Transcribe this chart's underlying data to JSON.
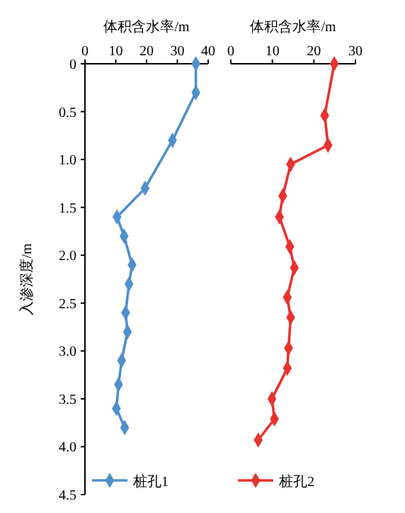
{
  "chart_data": [
    {
      "type": "line",
      "xlabel": "体积含水率/m",
      "ylabel": "入渗深度/m",
      "xlim": [
        0,
        40
      ],
      "xticks": [
        0,
        10,
        20,
        30,
        40
      ],
      "ylim": [
        4.5,
        0
      ],
      "yticks": [
        0,
        {
          "value": 0.5,
          "label": "0.5"
        },
        {
          "value": 1,
          "label": "1.0"
        },
        {
          "value": 1.5,
          "label": "1.5"
        },
        {
          "value": 2,
          "label": "2.0"
        },
        {
          "value": 2.5,
          "label": "2.5"
        },
        {
          "value": 3,
          "label": "3.0"
        },
        {
          "value": 3.5,
          "label": "3.5"
        },
        {
          "value": 4,
          "label": "4.0"
        },
        {
          "value": 4.5,
          "label": "4.5"
        }
      ],
      "marker": "diamond",
      "legend": "bottom",
      "grid": false,
      "series": [
        {
          "name": "桩孔1",
          "color": "#4f8fcb",
          "x": [
            36,
            36,
            28.4,
            19.5,
            10.4,
            12.7,
            15.3,
            14.3,
            13.2,
            13.8,
            11.9,
            10.9,
            10.2,
            12.9
          ],
          "values": [
            0,
            0.3,
            0.8,
            1.3,
            1.6,
            1.8,
            2.1,
            2.3,
            2.6,
            2.8,
            3.1,
            3.35,
            3.6,
            3.8
          ]
        }
      ]
    },
    {
      "type": "line",
      "xlabel": "体积含水率/m",
      "xlim": [
        0,
        30
      ],
      "xticks": [
        0,
        10,
        20,
        30
      ],
      "ylim": [
        4.5,
        0
      ],
      "tick_labels": "x",
      "marker": "diamond",
      "legend": "bottom",
      "grid": false,
      "series": [
        {
          "name": "桩孔2",
          "color": "#e8322e",
          "x": [
            24.9,
            22.6,
            23.4,
            14.4,
            12.5,
            11.7,
            14.2,
            15.3,
            13.6,
            14.4,
            13.9,
            13.6,
            9.9,
            10.5,
            6.6
          ],
          "values": [
            0,
            0.54,
            0.85,
            1.05,
            1.38,
            1.6,
            1.91,
            2.13,
            2.44,
            2.65,
            2.97,
            3.18,
            3.5,
            3.71,
            3.93
          ]
        }
      ]
    }
  ]
}
